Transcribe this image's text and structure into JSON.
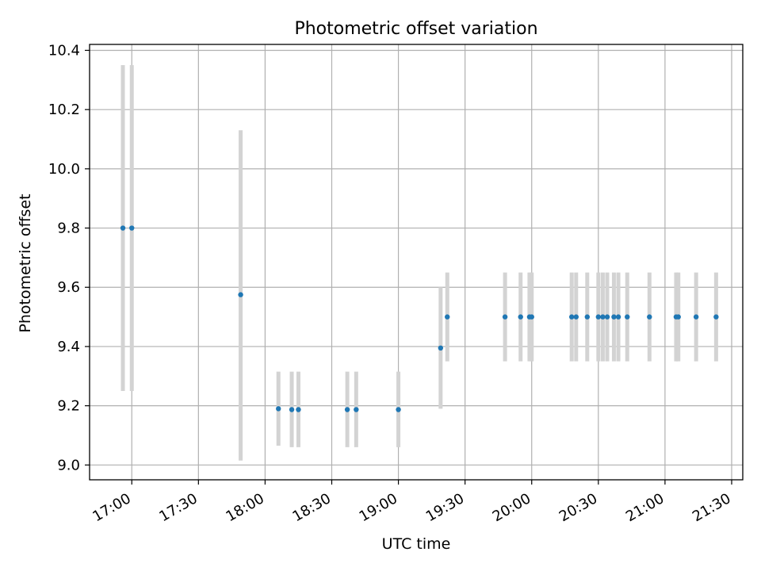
{
  "chart_data": {
    "type": "scatter",
    "title": "Photometric offset variation",
    "xlabel": "UTC time",
    "ylabel": "Photometric offset",
    "x_ticks": [
      "17:00",
      "17:30",
      "18:00",
      "18:30",
      "19:00",
      "19:30",
      "20:00",
      "20:30",
      "21:00",
      "21:30"
    ],
    "y_ticks": [
      "9.0",
      "9.2",
      "9.4",
      "9.6",
      "9.8",
      "10.0",
      "10.2",
      "10.4"
    ],
    "xlim": [
      "16:41",
      "21:35"
    ],
    "ylim": [
      8.95,
      10.42
    ],
    "grid": true,
    "marker_color": "#1f77b4",
    "errorbar_color": "#d3d3d3",
    "points": [
      {
        "t": "16:56",
        "y": 9.8,
        "lo": 9.25,
        "hi": 10.35
      },
      {
        "t": "17:00",
        "y": 9.8,
        "lo": 9.25,
        "hi": 10.35
      },
      {
        "t": "17:49",
        "y": 9.575,
        "lo": 9.015,
        "hi": 10.13
      },
      {
        "t": "18:06",
        "y": 9.19,
        "lo": 9.065,
        "hi": 9.315
      },
      {
        "t": "18:12",
        "y": 9.187,
        "lo": 9.06,
        "hi": 9.315
      },
      {
        "t": "18:15",
        "y": 9.187,
        "lo": 9.06,
        "hi": 9.315
      },
      {
        "t": "18:37",
        "y": 9.187,
        "lo": 9.06,
        "hi": 9.315
      },
      {
        "t": "18:41",
        "y": 9.187,
        "lo": 9.06,
        "hi": 9.315
      },
      {
        "t": "19:00",
        "y": 9.187,
        "lo": 9.06,
        "hi": 9.315
      },
      {
        "t": "19:19",
        "y": 9.395,
        "lo": 9.19,
        "hi": 9.6
      },
      {
        "t": "19:22",
        "y": 9.5,
        "lo": 9.35,
        "hi": 9.65
      },
      {
        "t": "19:48",
        "y": 9.5,
        "lo": 9.35,
        "hi": 9.65
      },
      {
        "t": "19:55",
        "y": 9.5,
        "lo": 9.35,
        "hi": 9.65
      },
      {
        "t": "19:59",
        "y": 9.5,
        "lo": 9.35,
        "hi": 9.65
      },
      {
        "t": "20:00",
        "y": 9.5,
        "lo": 9.35,
        "hi": 9.65
      },
      {
        "t": "20:18",
        "y": 9.5,
        "lo": 9.35,
        "hi": 9.65
      },
      {
        "t": "20:20",
        "y": 9.5,
        "lo": 9.35,
        "hi": 9.65
      },
      {
        "t": "20:25",
        "y": 9.5,
        "lo": 9.35,
        "hi": 9.65
      },
      {
        "t": "20:30",
        "y": 9.5,
        "lo": 9.35,
        "hi": 9.65
      },
      {
        "t": "20:32",
        "y": 9.5,
        "lo": 9.35,
        "hi": 9.65
      },
      {
        "t": "20:34",
        "y": 9.5,
        "lo": 9.35,
        "hi": 9.65
      },
      {
        "t": "20:37",
        "y": 9.5,
        "lo": 9.35,
        "hi": 9.65
      },
      {
        "t": "20:39",
        "y": 9.5,
        "lo": 9.35,
        "hi": 9.65
      },
      {
        "t": "20:43",
        "y": 9.5,
        "lo": 9.35,
        "hi": 9.65
      },
      {
        "t": "20:53",
        "y": 9.5,
        "lo": 9.35,
        "hi": 9.65
      },
      {
        "t": "21:05",
        "y": 9.5,
        "lo": 9.35,
        "hi": 9.65
      },
      {
        "t": "21:06",
        "y": 9.5,
        "lo": 9.35,
        "hi": 9.65
      },
      {
        "t": "21:14",
        "y": 9.5,
        "lo": 9.35,
        "hi": 9.65
      },
      {
        "t": "21:23",
        "y": 9.5,
        "lo": 9.35,
        "hi": 9.65
      }
    ]
  }
}
